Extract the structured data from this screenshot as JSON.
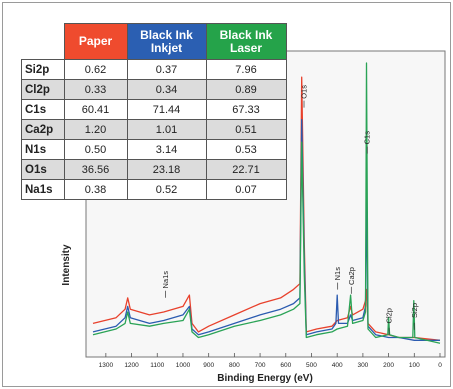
{
  "chart_data": {
    "type": "line",
    "xlabel": "Binding Energy (eV)",
    "ylabel": "Intensity",
    "xlim": [
      1350,
      0
    ],
    "ylim": [
      0,
      100
    ],
    "x_ticks": [
      1300,
      1200,
      1100,
      1000,
      900,
      800,
      700,
      600,
      500,
      400,
      300,
      200,
      100,
      0
    ],
    "peak_labels": [
      {
        "text": "Na1s",
        "x": 1070
      },
      {
        "text": "O1s",
        "x": 531
      },
      {
        "text": "N1s",
        "x": 400
      },
      {
        "text": "Ca2p",
        "x": 347
      },
      {
        "text": "C1s",
        "x": 285
      },
      {
        "text": "Cl2p",
        "x": 200
      },
      {
        "text": "Si2p",
        "x": 102
      }
    ],
    "series": [
      {
        "name": "Paper",
        "color": "#e8412c",
        "points": [
          [
            1350,
            8
          ],
          [
            1260,
            10
          ],
          [
            1225,
            13
          ],
          [
            1215,
            17
          ],
          [
            1205,
            13
          ],
          [
            1130,
            11
          ],
          [
            1075,
            12
          ],
          [
            1000,
            14
          ],
          [
            975,
            18
          ],
          [
            965,
            8
          ],
          [
            940,
            5
          ],
          [
            900,
            7
          ],
          [
            800,
            11
          ],
          [
            700,
            15
          ],
          [
            620,
            17
          ],
          [
            570,
            20
          ],
          [
            545,
            22
          ],
          [
            538,
            95
          ],
          [
            528,
            36
          ],
          [
            520,
            5
          ],
          [
            480,
            6
          ],
          [
            420,
            7
          ],
          [
            400,
            9
          ],
          [
            360,
            10
          ],
          [
            348,
            14
          ],
          [
            340,
            11
          ],
          [
            300,
            13
          ],
          [
            290,
            16
          ],
          [
            286,
            20
          ],
          [
            280,
            8
          ],
          [
            250,
            5
          ],
          [
            200,
            4
          ],
          [
            160,
            3
          ],
          [
            100,
            3
          ],
          [
            0,
            2
          ]
        ]
      },
      {
        "name": "Black Ink Inkjet",
        "color": "#2b5bb0",
        "points": [
          [
            1350,
            5
          ],
          [
            1260,
            7
          ],
          [
            1225,
            10
          ],
          [
            1215,
            14
          ],
          [
            1205,
            10
          ],
          [
            1130,
            8
          ],
          [
            1075,
            9
          ],
          [
            1000,
            11
          ],
          [
            975,
            14
          ],
          [
            965,
            6
          ],
          [
            940,
            4
          ],
          [
            900,
            5
          ],
          [
            800,
            8
          ],
          [
            700,
            11
          ],
          [
            620,
            13
          ],
          [
            570,
            15
          ],
          [
            545,
            17
          ],
          [
            538,
            80
          ],
          [
            528,
            30
          ],
          [
            520,
            4
          ],
          [
            480,
            5
          ],
          [
            420,
            6
          ],
          [
            405,
            8
          ],
          [
            400,
            18
          ],
          [
            395,
            8
          ],
          [
            360,
            8
          ],
          [
            348,
            11
          ],
          [
            340,
            9
          ],
          [
            300,
            10
          ],
          [
            290,
            14
          ],
          [
            286,
            55
          ],
          [
            280,
            7
          ],
          [
            250,
            4
          ],
          [
            200,
            3
          ],
          [
            160,
            3
          ],
          [
            100,
            2
          ],
          [
            0,
            2
          ]
        ]
      },
      {
        "name": "Black Ink Laser",
        "color": "#2aa356",
        "points": [
          [
            1350,
            4
          ],
          [
            1260,
            6
          ],
          [
            1225,
            8
          ],
          [
            1215,
            12
          ],
          [
            1205,
            8
          ],
          [
            1130,
            7
          ],
          [
            1075,
            8
          ],
          [
            1000,
            9
          ],
          [
            975,
            13
          ],
          [
            965,
            5
          ],
          [
            940,
            3
          ],
          [
            900,
            4
          ],
          [
            800,
            7
          ],
          [
            700,
            9
          ],
          [
            620,
            11
          ],
          [
            570,
            13
          ],
          [
            545,
            15
          ],
          [
            538,
            72
          ],
          [
            528,
            25
          ],
          [
            520,
            3
          ],
          [
            480,
            4
          ],
          [
            420,
            5
          ],
          [
            400,
            6
          ],
          [
            360,
            7
          ],
          [
            348,
            18
          ],
          [
            340,
            8
          ],
          [
            300,
            9
          ],
          [
            290,
            12
          ],
          [
            286,
            100
          ],
          [
            280,
            6
          ],
          [
            250,
            3
          ],
          [
            203,
            4
          ],
          [
            200,
            10
          ],
          [
            196,
            4
          ],
          [
            160,
            3
          ],
          [
            106,
            3
          ],
          [
            102,
            16
          ],
          [
            98,
            3
          ],
          [
            0,
            1
          ]
        ]
      }
    ]
  },
  "table": {
    "headers": [
      "Paper",
      "Black Ink Inkjet",
      "Black Ink Laser"
    ],
    "rows": [
      {
        "element": "Si2p",
        "values": [
          "0.62",
          "0.37",
          "7.96"
        ]
      },
      {
        "element": "Cl2p",
        "values": [
          "0.33",
          "0.34",
          "0.89"
        ]
      },
      {
        "element": "C1s",
        "values": [
          "60.41",
          "71.44",
          "67.33"
        ]
      },
      {
        "element": "Ca2p",
        "values": [
          "1.20",
          "1.01",
          "0.51"
        ]
      },
      {
        "element": "N1s",
        "values": [
          "0.50",
          "3.14",
          "0.53"
        ]
      },
      {
        "element": "O1s",
        "values": [
          "36.56",
          "23.18",
          "22.71"
        ]
      },
      {
        "element": "Na1s",
        "values": [
          "0.38",
          "0.52",
          "0.07"
        ]
      }
    ]
  }
}
